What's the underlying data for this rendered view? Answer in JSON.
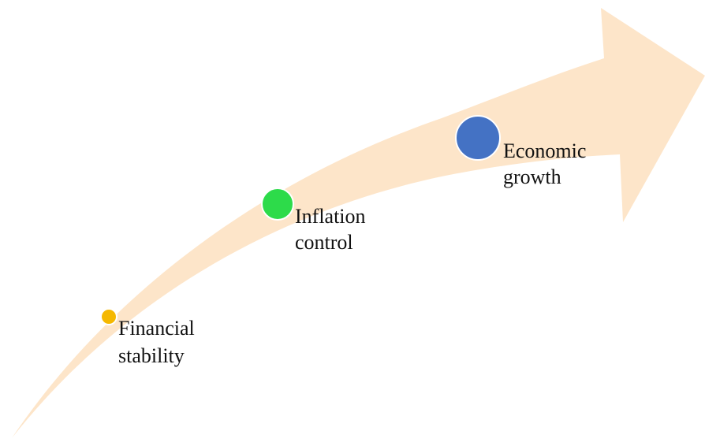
{
  "nodes": [
    {
      "label_lines": [
        "Financial",
        "stability"
      ]
    },
    {
      "label_lines": [
        "Inflation",
        "control"
      ]
    },
    {
      "label_lines": [
        "Economic",
        "growth"
      ]
    }
  ]
}
